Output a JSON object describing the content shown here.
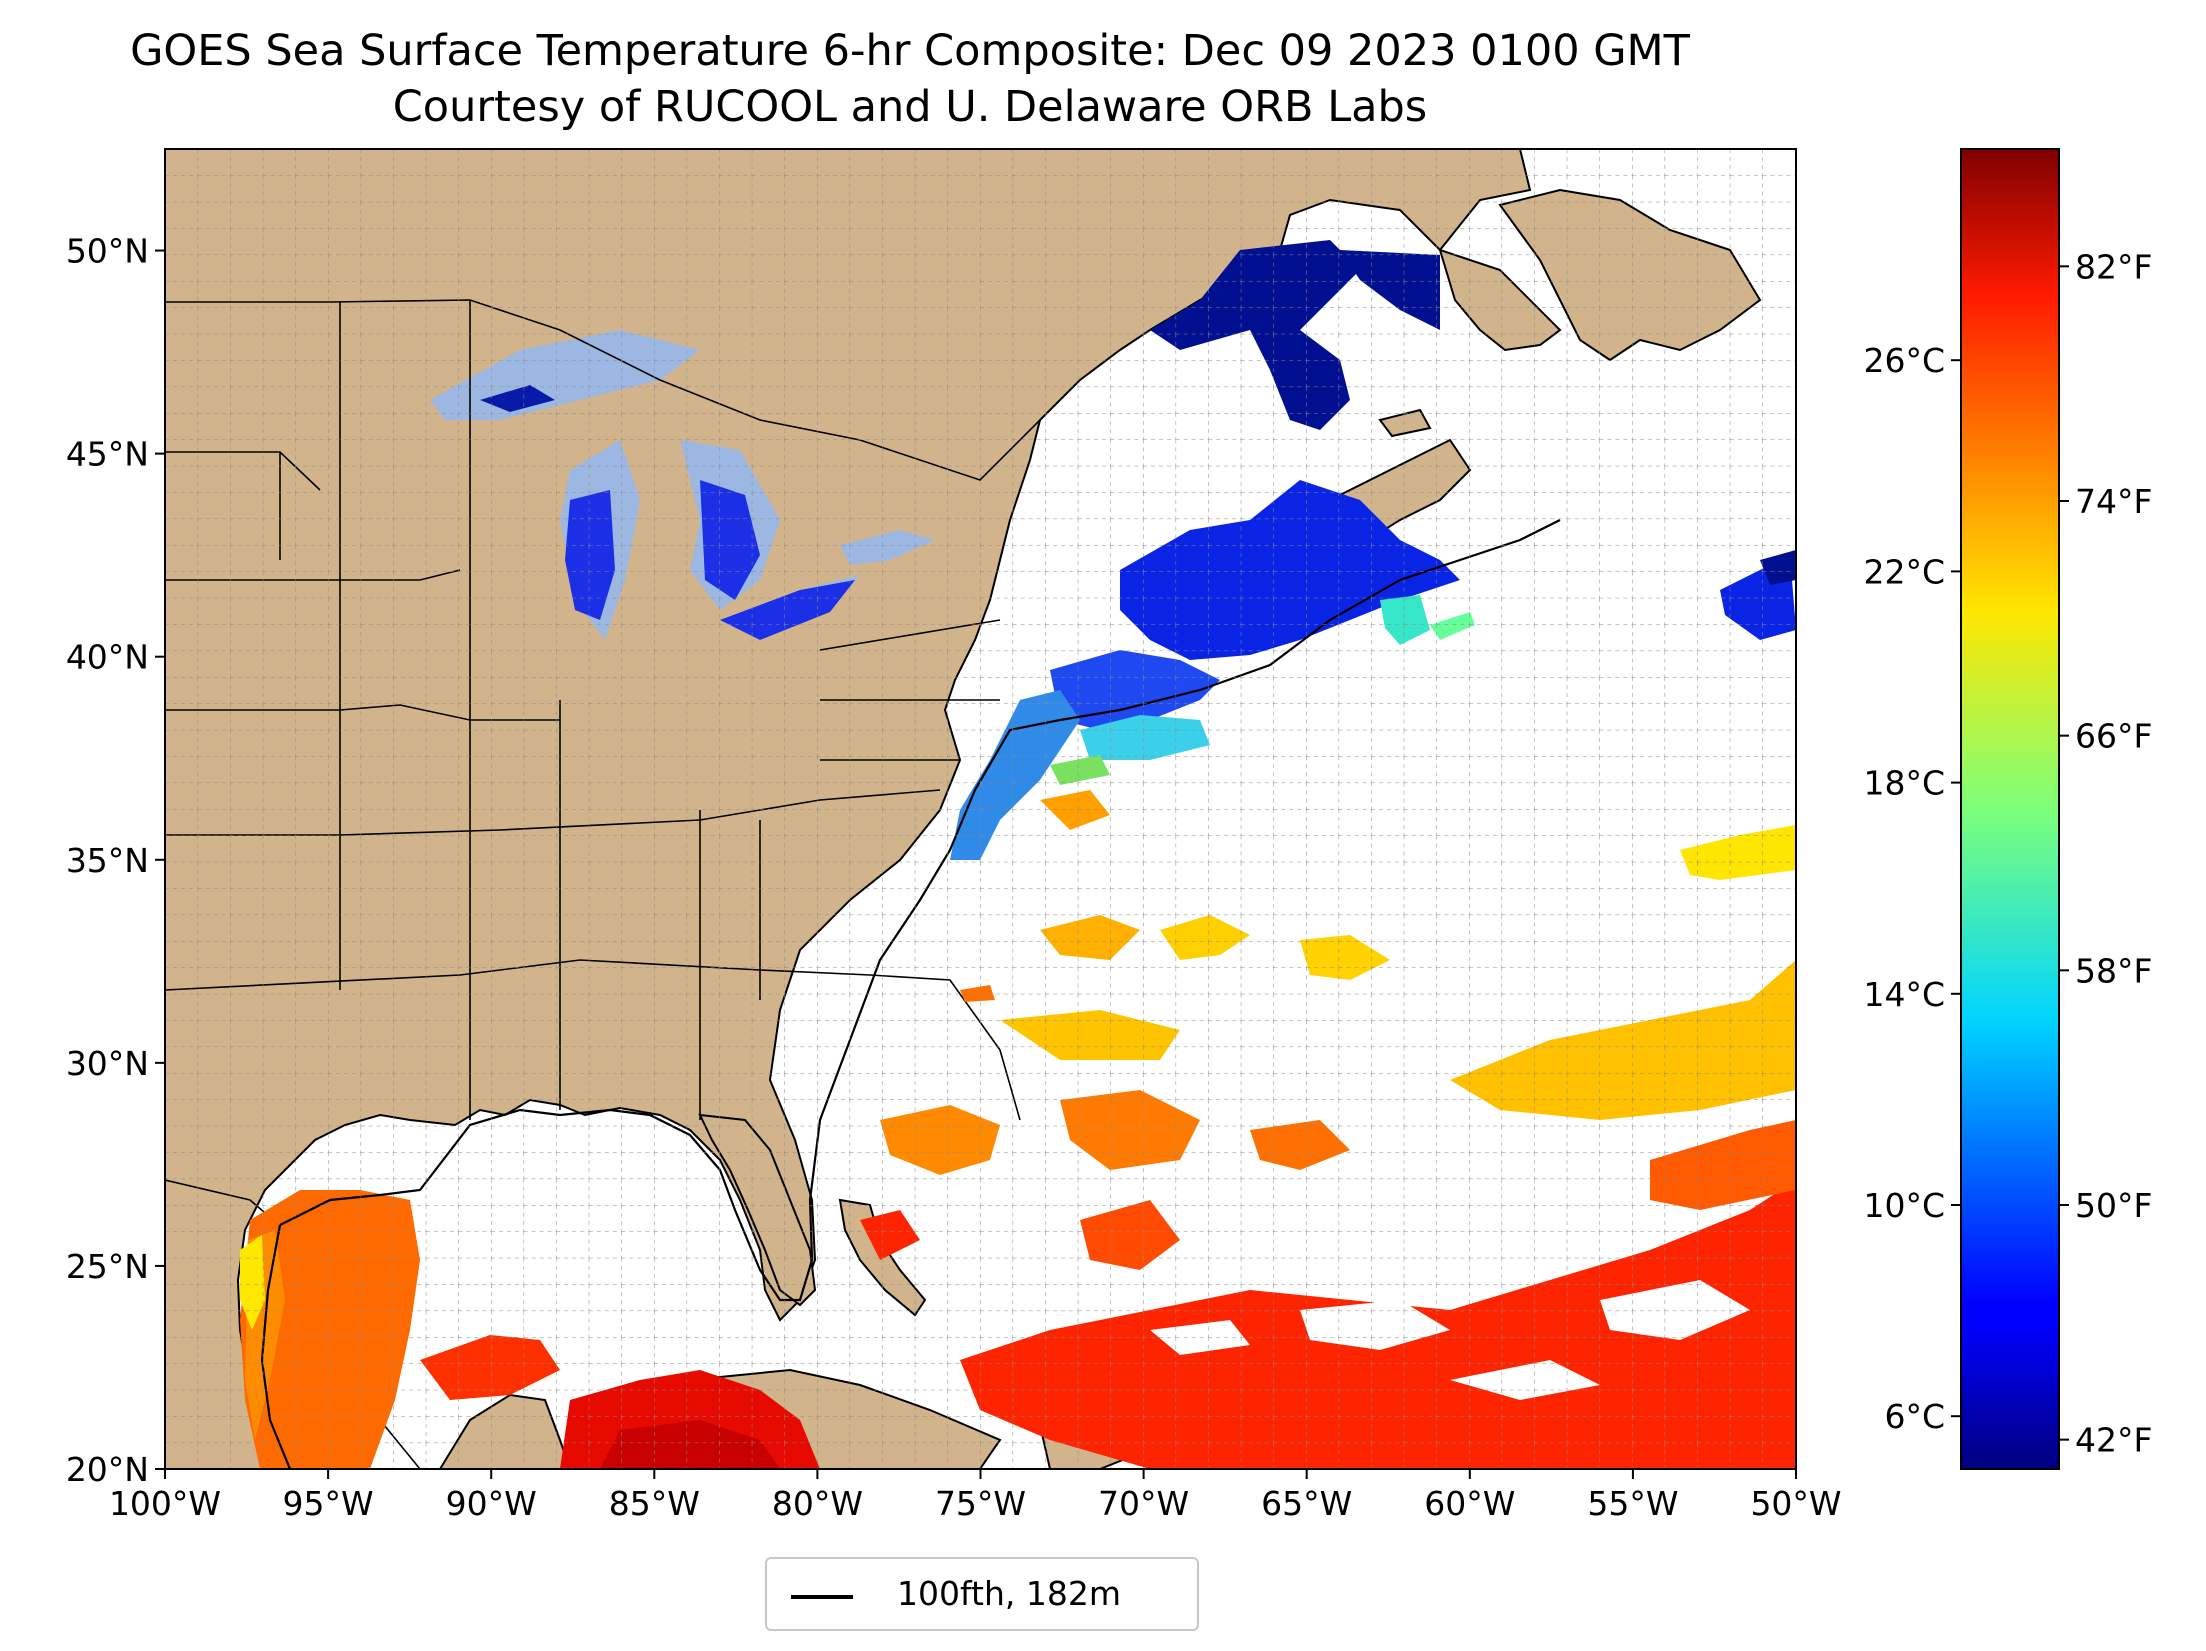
{
  "title": {
    "line1": "GOES Sea Surface Temperature 6-hr Composite: Dec 09 2023 0100 GMT",
    "line2": "Courtesy of RUCOOL and U. Delaware ORB Labs"
  },
  "map": {
    "lon_range": [
      -100,
      -50
    ],
    "lat_range": [
      20,
      52.5
    ],
    "lon_ticks": [
      "100°W",
      "95°W",
      "90°W",
      "85°W",
      "80°W",
      "75°W",
      "70°W",
      "65°W",
      "60°W",
      "55°W",
      "50°W"
    ],
    "lat_ticks": [
      "20°N",
      "25°N",
      "30°N",
      "35°N",
      "40°N",
      "45°N",
      "50°N"
    ],
    "lat_tick_values": [
      20,
      25,
      30,
      35,
      40,
      45,
      50
    ],
    "grid": true,
    "land_color": "#d2b48c",
    "ocean_color": "#ffffff",
    "great_lakes_color": "#9cb8e2"
  },
  "colorbar": {
    "colormap": "jet",
    "celsius_range": [
      5.0,
      30.0
    ],
    "celsius_ticks": [
      "6°C",
      "10°C",
      "14°C",
      "18°C",
      "22°C",
      "26°C"
    ],
    "celsius_tick_values": [
      6,
      10,
      14,
      18,
      22,
      26
    ],
    "fahrenheit_ticks": [
      "42°F",
      "50°F",
      "58°F",
      "66°F",
      "74°F",
      "82°F"
    ],
    "fahrenheit_tick_values": [
      42,
      50,
      58,
      66,
      74,
      82
    ]
  },
  "legend": {
    "label": "100fth, 182m",
    "placement": "bottom-center"
  }
}
